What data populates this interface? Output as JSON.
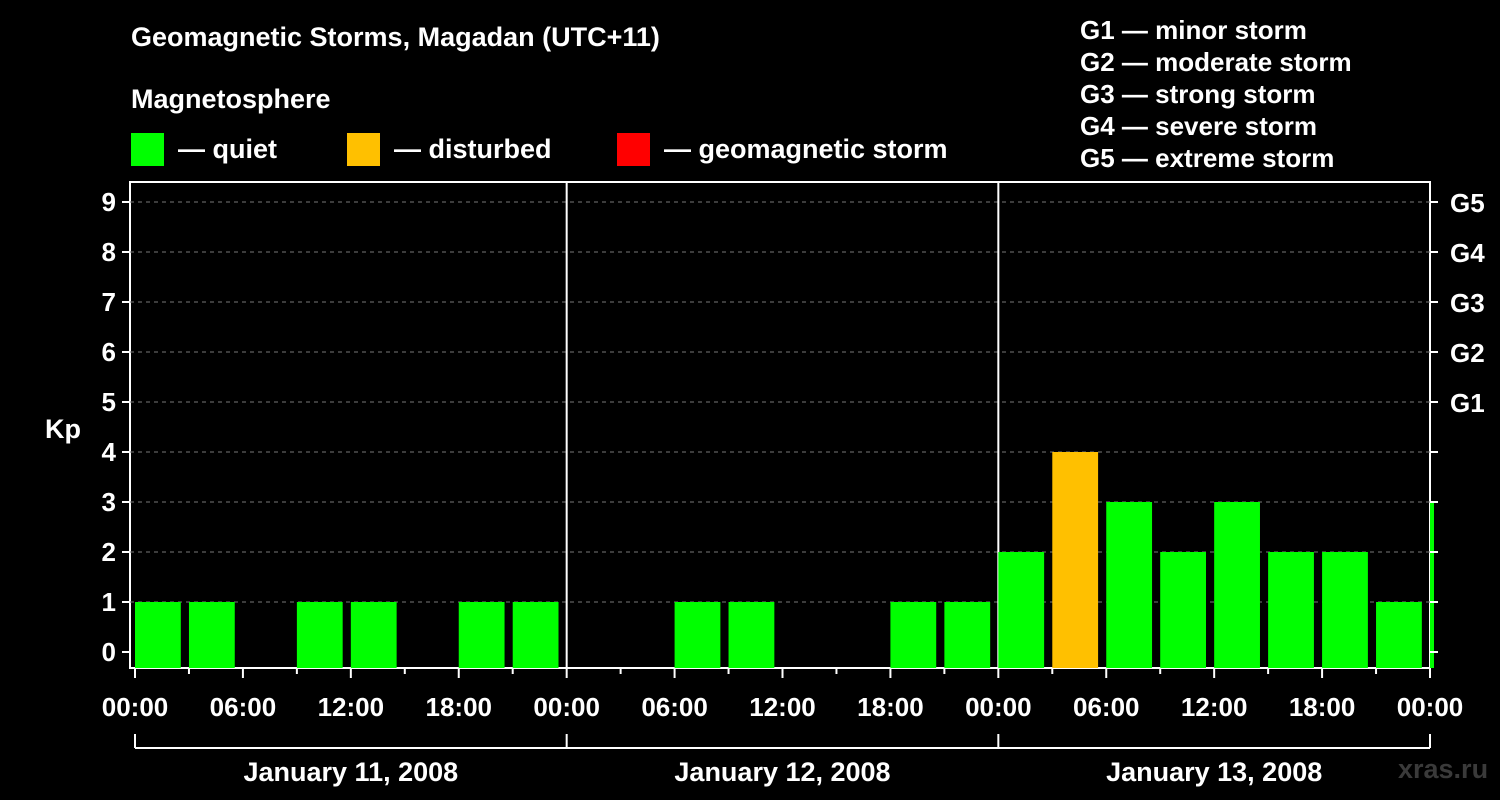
{
  "header": {
    "title": "Geomagnetic Storms, Magadan (UTC+11)",
    "subtitle": "Magnetosphere"
  },
  "legend": [
    {
      "label": "— quiet",
      "color": "#00ff00"
    },
    {
      "label": "— disturbed",
      "color": "#ffc000"
    },
    {
      "label": "— geomagnetic storm",
      "color": "#ff0000"
    }
  ],
  "storm_scale": [
    "G1 — minor storm",
    "G2 — moderate storm",
    "G3 — strong storm",
    "G4 — severe storm",
    "G5 — extreme storm"
  ],
  "watermark": "xras.ru",
  "chart_data": {
    "type": "bar",
    "ylabel": "Kp",
    "ylim": [
      0,
      9
    ],
    "y_ticks": [
      0,
      1,
      2,
      3,
      4,
      5,
      6,
      7,
      8,
      9
    ],
    "right_axis_labels": [
      {
        "y": 5,
        "label": "G1"
      },
      {
        "y": 6,
        "label": "G2"
      },
      {
        "y": 7,
        "label": "G3"
      },
      {
        "y": 8,
        "label": "G4"
      },
      {
        "y": 9,
        "label": "G5"
      }
    ],
    "x_tick_labels": [
      "00:00",
      "06:00",
      "12:00",
      "18:00",
      "00:00",
      "06:00",
      "12:00",
      "18:00",
      "00:00",
      "06:00",
      "12:00",
      "18:00",
      "00:00"
    ],
    "days": [
      "January 11, 2008",
      "January 12, 2008",
      "January 13, 2008"
    ],
    "grid": true,
    "thresholds": {
      "disturbed": 4,
      "storm": 5
    },
    "colors": {
      "quiet": "#00ff00",
      "disturbed": "#ffc000",
      "storm": "#ff0000"
    },
    "values": [
      1,
      1,
      0,
      1,
      1,
      0,
      1,
      1,
      0,
      0,
      1,
      1,
      0,
      0,
      1,
      1,
      2,
      4,
      3,
      2,
      3,
      2,
      2,
      1,
      3
    ]
  }
}
